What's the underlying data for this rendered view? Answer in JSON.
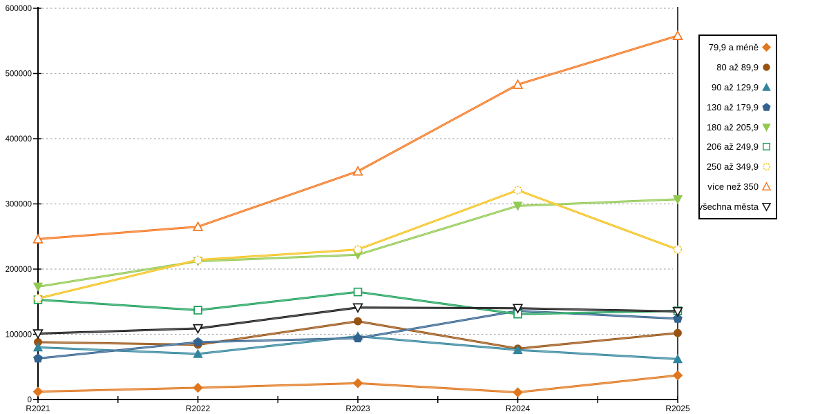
{
  "chart_data": {
    "type": "line",
    "title": "",
    "xlabel": "",
    "ylabel": "",
    "categories": [
      "R2021",
      "R2022",
      "R2023",
      "R2024",
      "R2025"
    ],
    "ylim": [
      0,
      600000
    ],
    "ytick_step": 100000,
    "ytick_labels": [
      "0",
      "100000",
      "200000",
      "300000",
      "400000",
      "500000",
      "600000"
    ],
    "grid": "horizontal-dashed",
    "legend_position": "right",
    "series": [
      {
        "name": "79,9 a méně",
        "marker": "diamond",
        "filled": true,
        "dashed_marker": false,
        "color": "#e0761d",
        "values": [
          12000,
          18000,
          25000,
          11000,
          37000
        ]
      },
      {
        "name": "80 až 89,9",
        "marker": "circle",
        "filled": true,
        "dashed_marker": false,
        "color": "#985212",
        "values": [
          88000,
          84000,
          120000,
          78000,
          102000
        ]
      },
      {
        "name": "90 až 129,9",
        "marker": "triangle-up",
        "filled": true,
        "dashed_marker": false,
        "color": "#31859c",
        "values": [
          80000,
          70000,
          97000,
          76000,
          62000
        ]
      },
      {
        "name": "130 až 179,9",
        "marker": "pentagon",
        "filled": true,
        "dashed_marker": false,
        "color": "#33638f",
        "values": [
          63000,
          88000,
          94000,
          136000,
          124000
        ]
      },
      {
        "name": "180 až 205,9",
        "marker": "triangle-down",
        "filled": true,
        "dashed_marker": false,
        "color": "#92c951",
        "values": [
          173000,
          212000,
          222000,
          297000,
          307000
        ]
      },
      {
        "name": "206 až 249,9",
        "marker": "square",
        "filled": false,
        "dashed_marker": false,
        "color": "#1ca05a",
        "values": [
          153000,
          137000,
          165000,
          131000,
          136000
        ]
      },
      {
        "name": "250 až 349,9",
        "marker": "circle",
        "filled": false,
        "dashed_marker": true,
        "color": "#f4c21a",
        "values": [
          155000,
          214000,
          230000,
          321000,
          230000
        ]
      },
      {
        "name": "více než 350",
        "marker": "triangle-up",
        "filled": false,
        "dashed_marker": false,
        "color": "#f5761f",
        "values": [
          246000,
          265000,
          350000,
          483000,
          558000
        ]
      },
      {
        "name": "všechna města",
        "marker": "triangle-down",
        "filled": false,
        "dashed_marker": false,
        "color": "#141414",
        "values": [
          101000,
          109000,
          141000,
          140000,
          135000
        ]
      }
    ]
  },
  "colors": {
    "axis": "#000000",
    "grid": "#ababab",
    "background": "#ffffff",
    "tick_label": "#000000"
  }
}
